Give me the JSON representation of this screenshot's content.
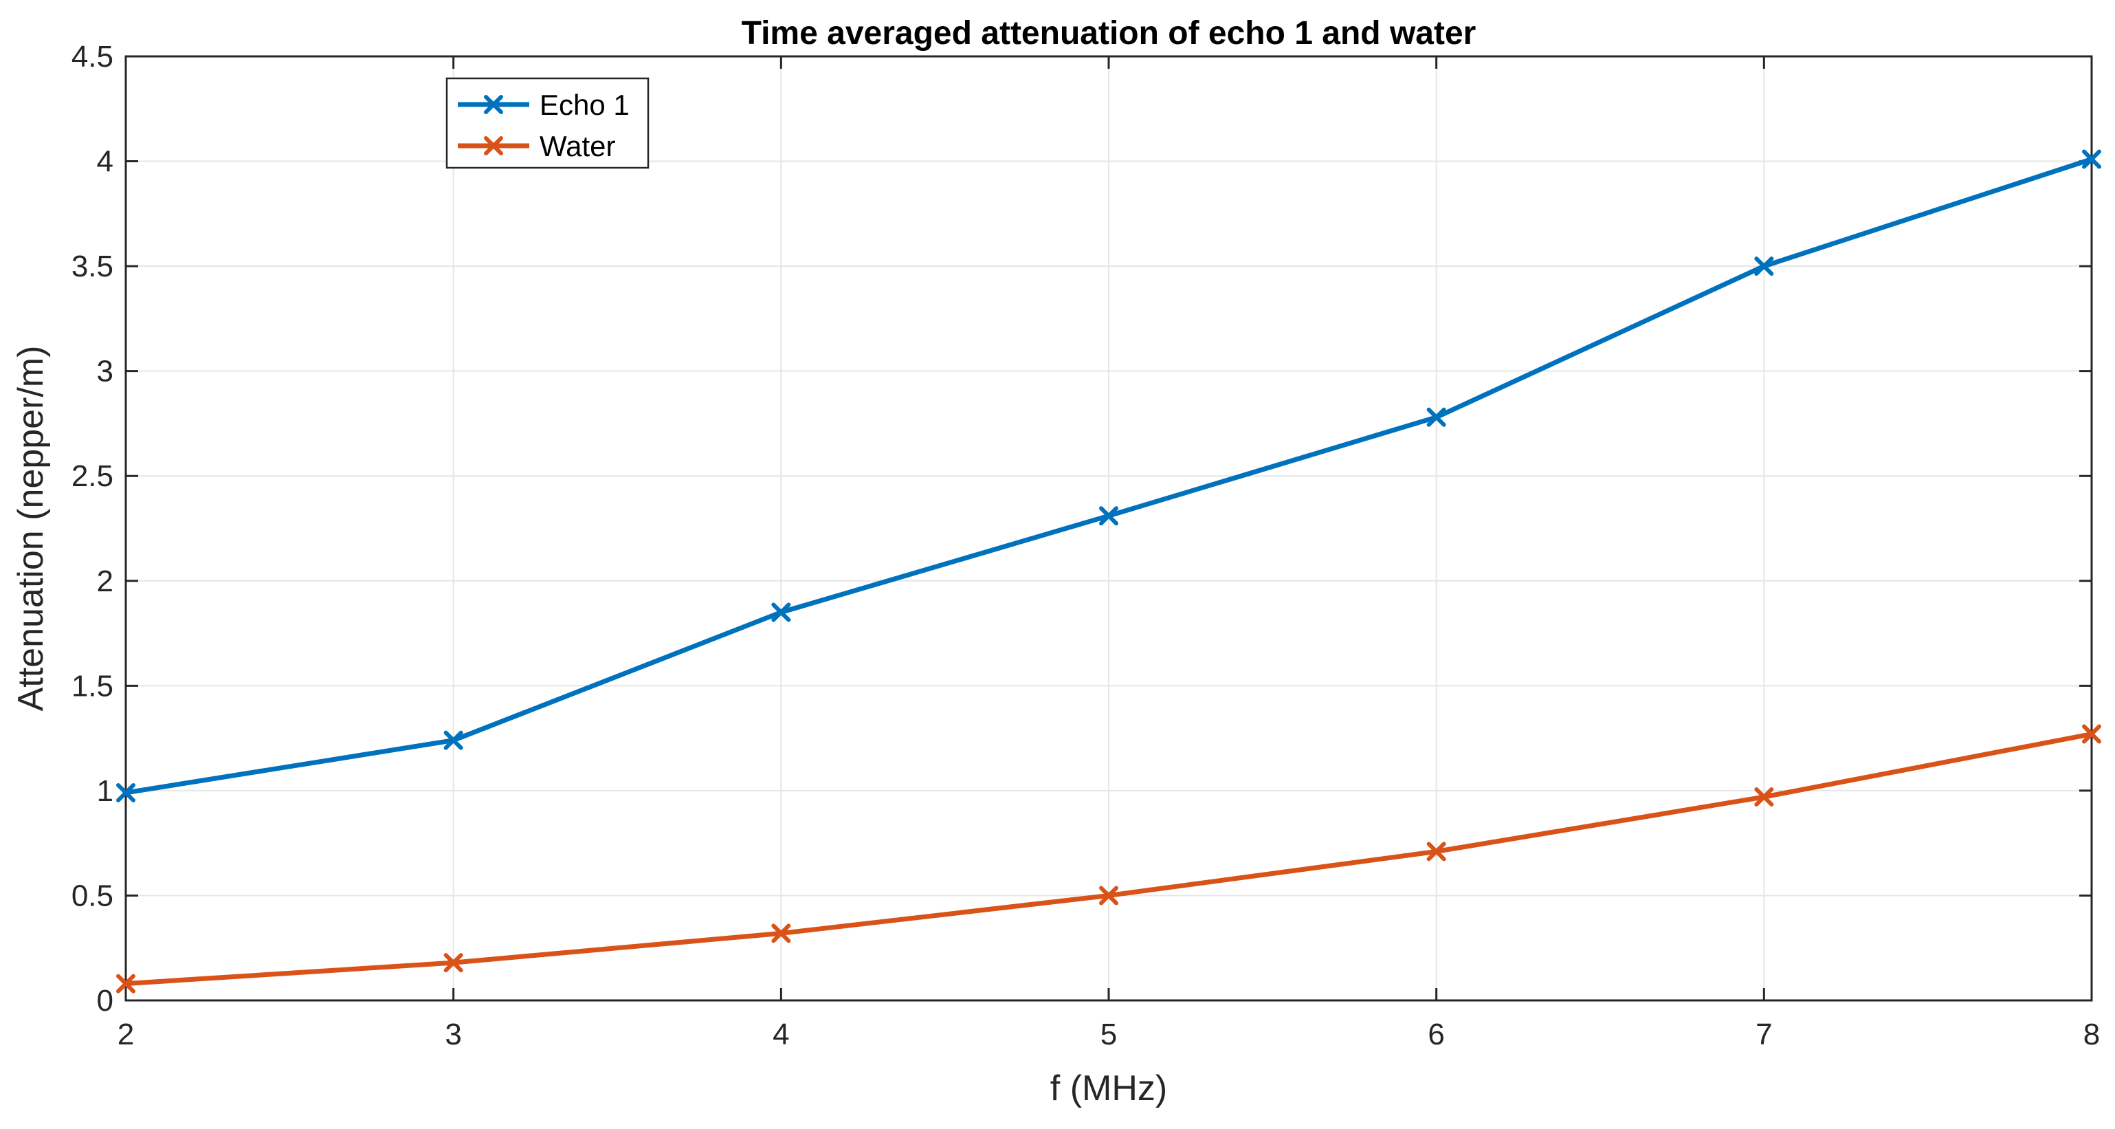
{
  "chart_data": {
    "type": "line",
    "title": "Time averaged attenuation of echo 1 and water",
    "xlabel": "f (MHz)",
    "ylabel": "Attenuation (nepper/m)",
    "xlim": [
      2,
      8
    ],
    "ylim": [
      0,
      4.5
    ],
    "grid": true,
    "legend_position": "top-left",
    "x": [
      2,
      3,
      4,
      5,
      6,
      7,
      8
    ],
    "x_tick_labels": [
      "2",
      "3",
      "4",
      "5",
      "6",
      "7",
      "8"
    ],
    "y_tick_values": [
      0,
      0.5,
      1,
      1.5,
      2,
      2.5,
      3,
      3.5,
      4,
      4.5
    ],
    "y_tick_labels": [
      "0",
      "0.5",
      "1",
      "1.5",
      "2",
      "2.5",
      "3",
      "3.5",
      "4",
      "4.5"
    ],
    "series": [
      {
        "name": "Echo 1",
        "color": "#0072BD",
        "marker": "x",
        "values": [
          0.99,
          1.24,
          1.85,
          2.31,
          2.78,
          3.5,
          4.01
        ]
      },
      {
        "name": "Water",
        "color": "#D95319",
        "marker": "x",
        "values": [
          0.08,
          0.18,
          0.32,
          0.5,
          0.71,
          0.97,
          1.27
        ]
      }
    ]
  }
}
